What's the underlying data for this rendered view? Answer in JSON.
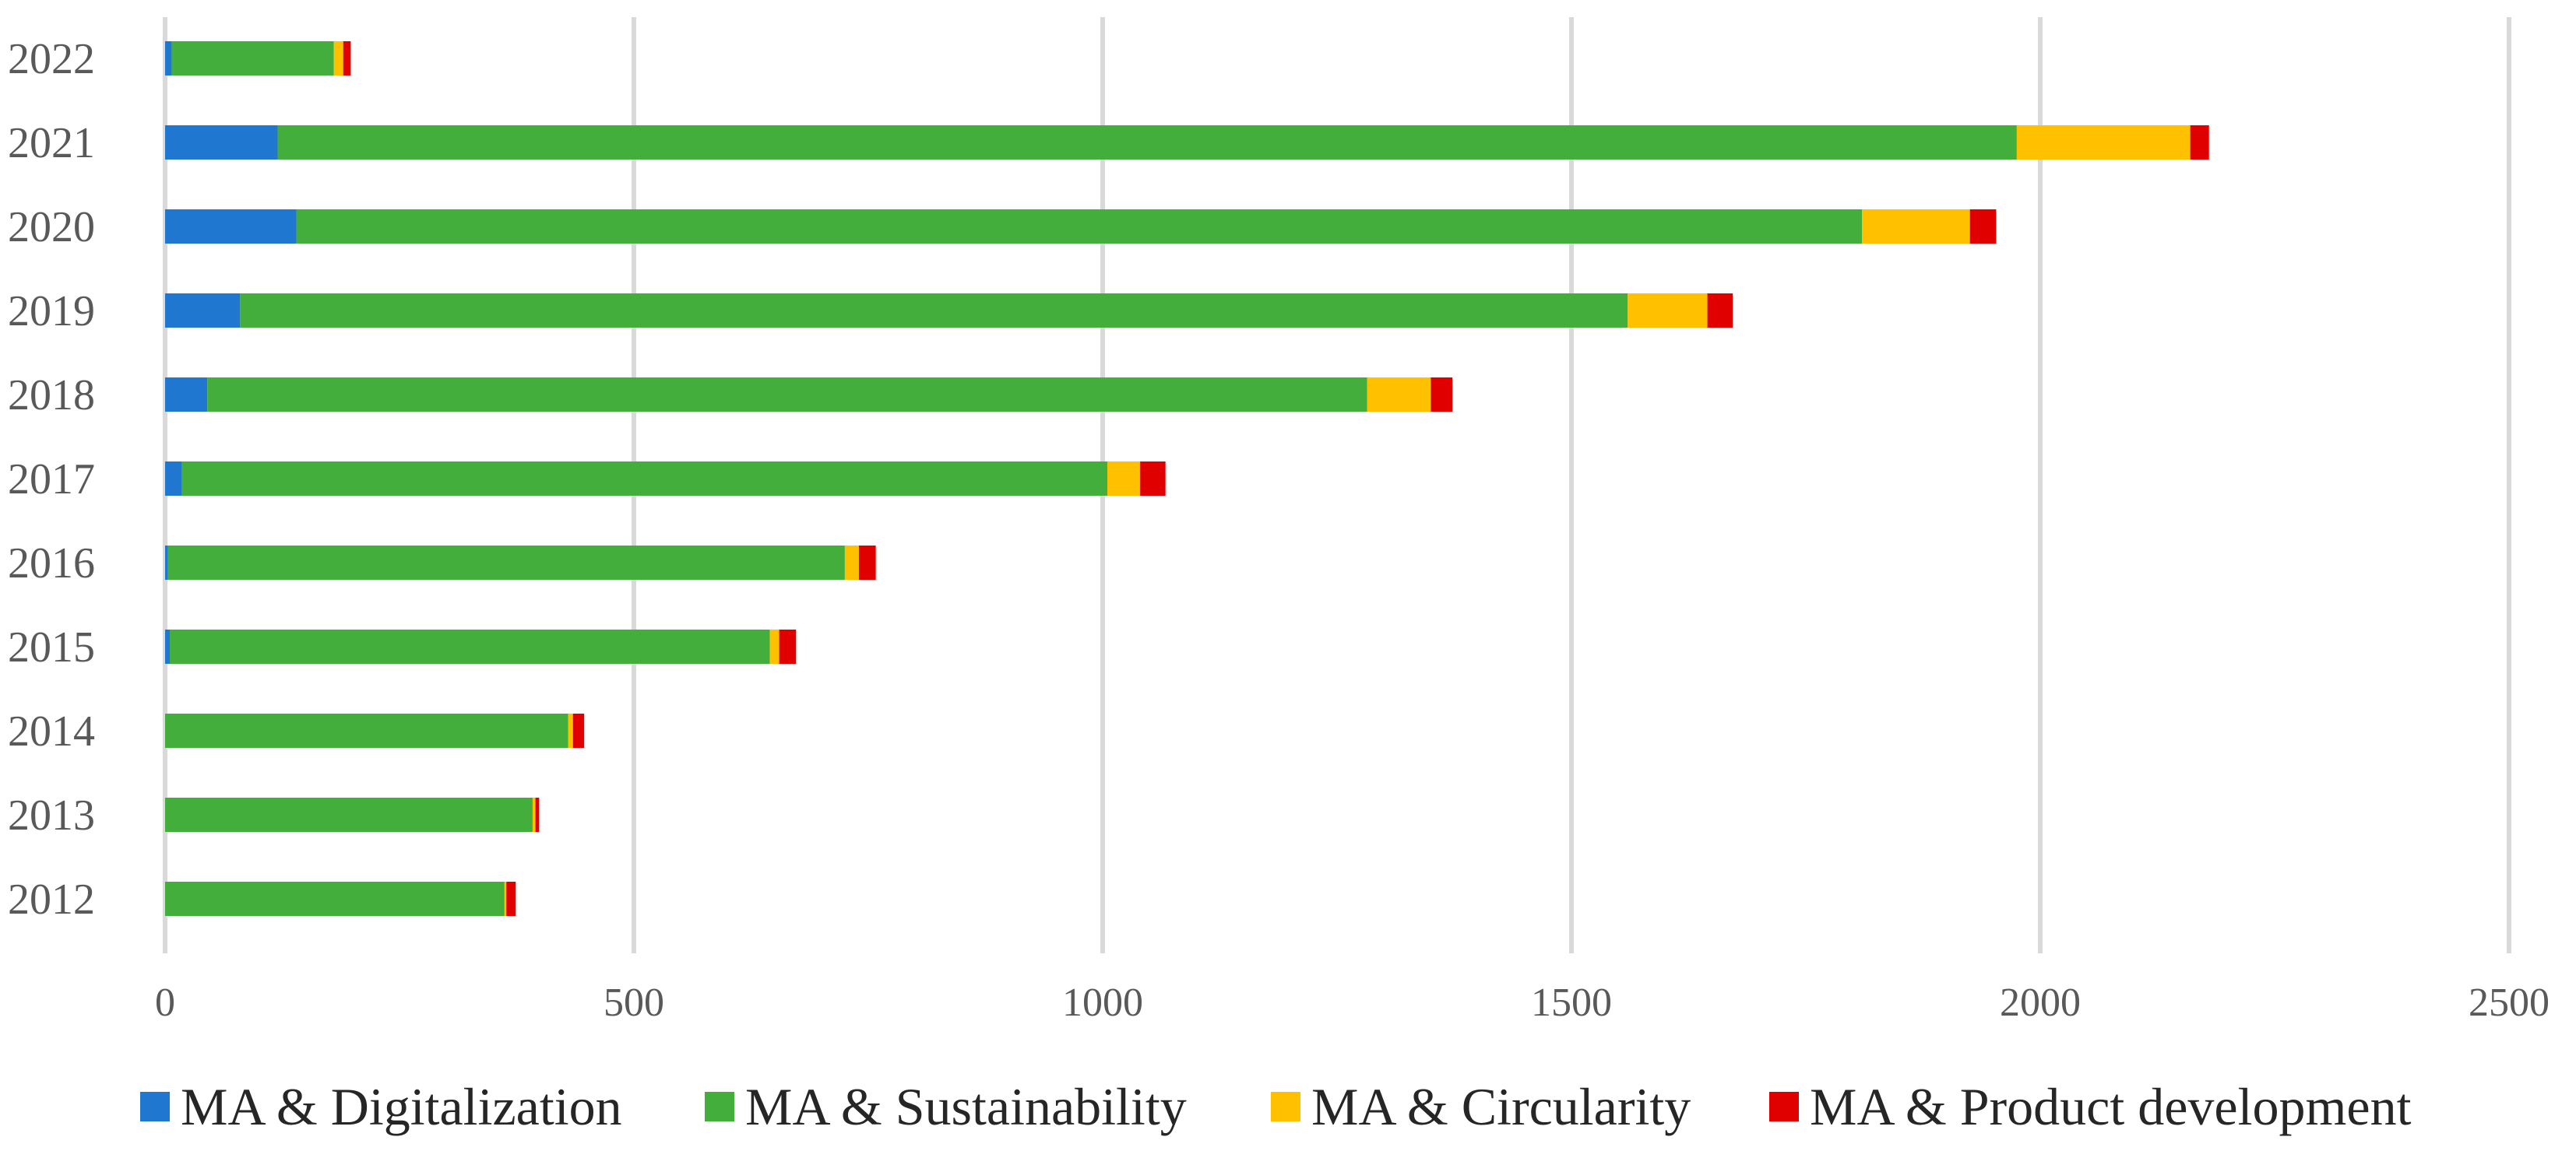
{
  "chart_data": {
    "type": "bar",
    "orientation": "horizontal",
    "stacked": true,
    "categories": [
      "2022",
      "2021",
      "2020",
      "2019",
      "2018",
      "2017",
      "2016",
      "2015",
      "2014",
      "2013",
      "2012"
    ],
    "series": [
      {
        "name": "MA & Digitalization",
        "color": "#1f77d0",
        "values": [
          7,
          120,
          140,
          80,
          45,
          18,
          3,
          5,
          0,
          0,
          0
        ]
      },
      {
        "name": "MA & Sustainability",
        "color": "#43ae3c",
        "values": [
          173,
          1855,
          1670,
          1480,
          1237,
          987,
          722,
          640,
          430,
          392,
          362
        ]
      },
      {
        "name": "MA & Circularity",
        "color": "#ffc000",
        "values": [
          10,
          185,
          115,
          85,
          68,
          35,
          15,
          10,
          5,
          3,
          2
        ]
      },
      {
        "name": "MA & Product development",
        "color": "#e00000",
        "values": [
          8,
          20,
          28,
          27,
          23,
          27,
          18,
          18,
          12,
          4,
          10
        ]
      }
    ],
    "xlim": [
      0,
      2500
    ],
    "xticks": [
      "0",
      "500",
      "1000",
      "1500",
      "2000",
      "2500"
    ],
    "grid": true,
    "legend_position": "bottom",
    "title": "",
    "xlabel": "",
    "ylabel": ""
  }
}
